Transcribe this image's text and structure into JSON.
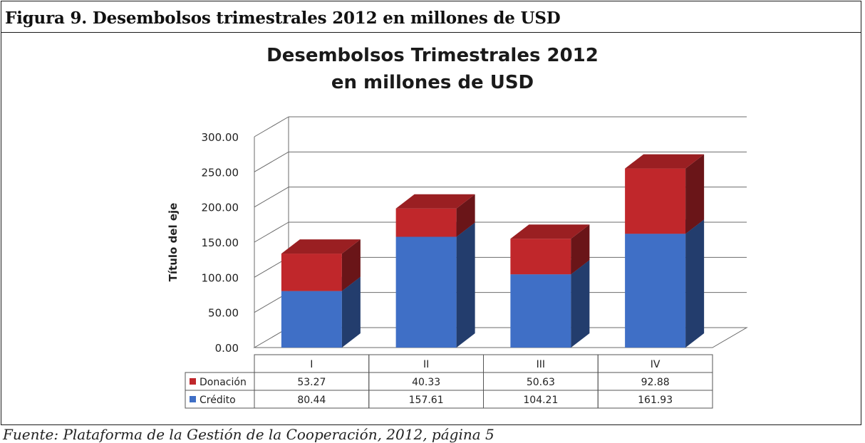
{
  "caption": "Figura 9. Desembolsos trimestrales 2012 en millones de USD",
  "source": "Fuente: Plataforma de la Gestión de la Cooperación, 2012, página 5",
  "colors": {
    "donacion": "#c0272b",
    "credito": "#3f6fc6",
    "grid": "#6b6b6b"
  },
  "chart_data": {
    "type": "bar",
    "stacked": true,
    "three_d": true,
    "title_line1": "Desembolsos  Trimestrales 2012",
    "title_line2": "en millones de USD",
    "ylabel": "Título del eje",
    "xlabel": "",
    "ylim": [
      0,
      300
    ],
    "yticks": [
      "0.00",
      "50.00",
      "100.00",
      "150.00",
      "200.00",
      "250.00",
      "300.00"
    ],
    "grid": true,
    "legend": "data-table",
    "categories": [
      "I",
      "II",
      "III",
      "IV"
    ],
    "series": [
      {
        "name": "Crédito",
        "values": [
          80.44,
          157.61,
          104.21,
          161.93
        ],
        "labels": [
          "80.44",
          "157.61",
          "104.21",
          "161.93"
        ]
      },
      {
        "name": "Donación",
        "values": [
          53.27,
          40.33,
          50.63,
          92.88
        ],
        "labels": [
          "53.27",
          "40.33",
          "50.63",
          "92.88"
        ]
      }
    ],
    "table_order": [
      "Donación",
      "Crédito"
    ]
  }
}
